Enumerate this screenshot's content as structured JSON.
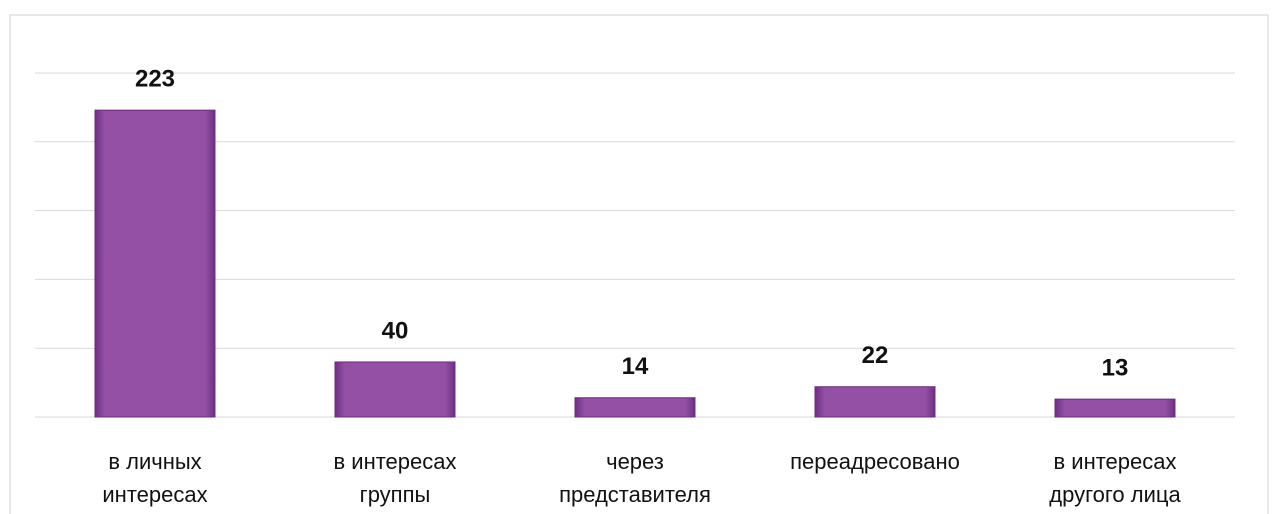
{
  "chart_data": {
    "type": "bar",
    "categories": [
      [
        "в личных",
        "интересах"
      ],
      [
        "в интересах",
        "группы"
      ],
      [
        "через",
        "представителя"
      ],
      [
        "переадресовано"
      ],
      [
        "в интересах",
        "другого лица"
      ]
    ],
    "values": [
      223,
      40,
      14,
      22,
      13
    ],
    "color": "#8e4a9e",
    "ylim": [
      0,
      250
    ],
    "yticks": [
      0,
      50,
      100,
      150,
      200,
      250
    ],
    "grid": true
  }
}
